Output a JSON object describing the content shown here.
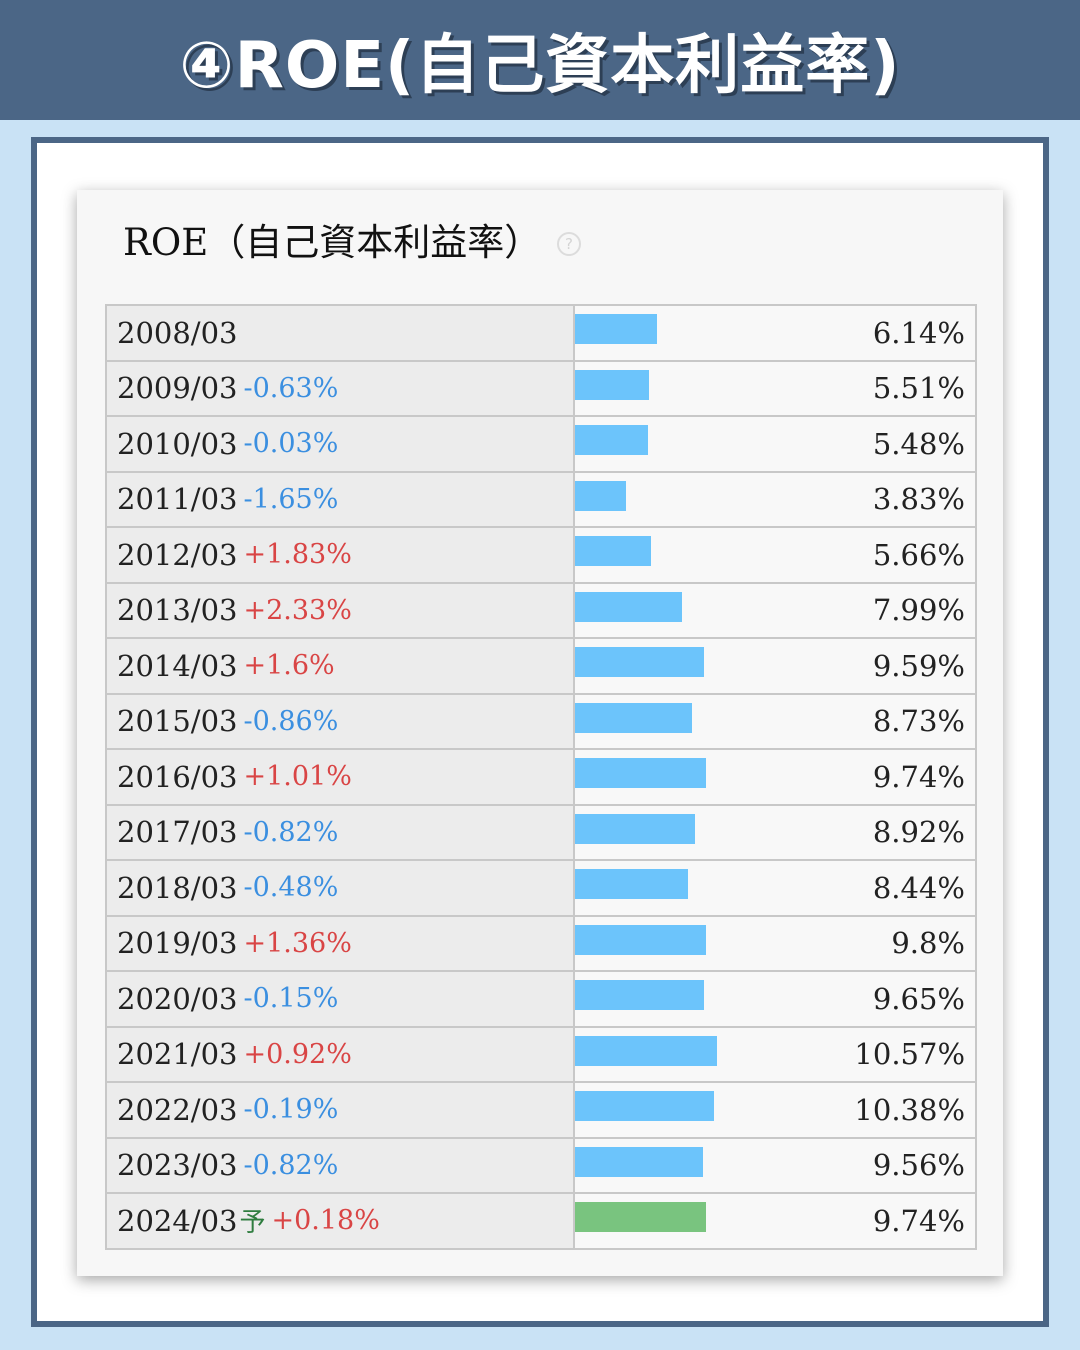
{
  "banner": {
    "title": "④ROE(自己資本利益率)"
  },
  "card": {
    "title": "ROE（自己資本利益率）",
    "help_icon": "question-circle-icon"
  },
  "colors": {
    "bar": "#6cc4fb",
    "forecast_bar": "#79c47f",
    "increase": "#d94545",
    "decrease": "#3b8fe0",
    "banner": "#4b6686"
  },
  "chart_data": {
    "type": "bar",
    "orientation": "horizontal",
    "title": "ROE（自己資本利益率）",
    "xlim": [
      0,
      30
    ],
    "rows": [
      {
        "year": "2008/03",
        "change": "",
        "forecast": "",
        "value": 6.14,
        "label": "6.14%"
      },
      {
        "year": "2009/03",
        "change": "-0.63%",
        "forecast": "",
        "value": 5.51,
        "label": "5.51%"
      },
      {
        "year": "2010/03",
        "change": "-0.03%",
        "forecast": "",
        "value": 5.48,
        "label": "5.48%"
      },
      {
        "year": "2011/03",
        "change": "-1.65%",
        "forecast": "",
        "value": 3.83,
        "label": "3.83%"
      },
      {
        "year": "2012/03",
        "change": "+1.83%",
        "forecast": "",
        "value": 5.66,
        "label": "5.66%"
      },
      {
        "year": "2013/03",
        "change": "+2.33%",
        "forecast": "",
        "value": 7.99,
        "label": "7.99%"
      },
      {
        "year": "2014/03",
        "change": "+1.6%",
        "forecast": "",
        "value": 9.59,
        "label": "9.59%"
      },
      {
        "year": "2015/03",
        "change": "-0.86%",
        "forecast": "",
        "value": 8.73,
        "label": "8.73%"
      },
      {
        "year": "2016/03",
        "change": "+1.01%",
        "forecast": "",
        "value": 9.74,
        "label": "9.74%"
      },
      {
        "year": "2017/03",
        "change": "-0.82%",
        "forecast": "",
        "value": 8.92,
        "label": "8.92%"
      },
      {
        "year": "2018/03",
        "change": "-0.48%",
        "forecast": "",
        "value": 8.44,
        "label": "8.44%"
      },
      {
        "year": "2019/03",
        "change": "+1.36%",
        "forecast": "",
        "value": 9.8,
        "label": "9.8%"
      },
      {
        "year": "2020/03",
        "change": "-0.15%",
        "forecast": "",
        "value": 9.65,
        "label": "9.65%"
      },
      {
        "year": "2021/03",
        "change": "+0.92%",
        "forecast": "",
        "value": 10.57,
        "label": "10.57%"
      },
      {
        "year": "2022/03",
        "change": "-0.19%",
        "forecast": "",
        "value": 10.38,
        "label": "10.38%"
      },
      {
        "year": "2023/03",
        "change": "-0.82%",
        "forecast": "",
        "value": 9.56,
        "label": "9.56%"
      },
      {
        "year": "2024/03",
        "change": "+0.18%",
        "forecast": "予",
        "value": 9.74,
        "label": "9.74%"
      }
    ]
  }
}
